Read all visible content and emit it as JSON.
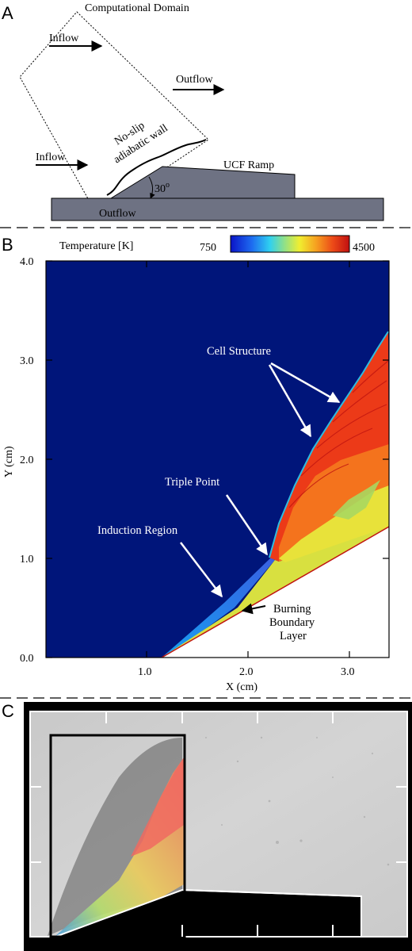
{
  "panel_a": {
    "letter": "A",
    "title": "Computational Domain",
    "inflow_top": "Inflow",
    "inflow_bottom": "Inflow",
    "outflow_right": "Outflow",
    "outflow_bottom": "Outflow",
    "wall_line1": "No-slip",
    "wall_line2": "adiabatic wall",
    "ramp": "UCF Ramp",
    "angle": "30",
    "angle_sup": "o"
  },
  "panel_b": {
    "letter": "B",
    "colorbar_title": "Temperature [K]",
    "colorbar_min": "750",
    "colorbar_max": "4500",
    "ylabel": "Y (cm)",
    "xlabel": "X (cm)",
    "yticks": [
      "0.0",
      "1.0",
      "2.0",
      "3.0",
      "4.0"
    ],
    "xticks": [
      "1.0",
      "2.0",
      "3.0"
    ],
    "ann_cell": "Cell Structure",
    "ann_triple": "Triple Point",
    "ann_induction": "Induction Region",
    "ann_burning_1": "Burning",
    "ann_burning_2": "Boundary",
    "ann_burning_3": "Layer"
  },
  "panel_c": {
    "letter": "C"
  },
  "colors": {
    "background_field": "#00157a",
    "ramp_gray": "#6e7283",
    "hot_red": "#e8351a",
    "orange": "#f47b1c",
    "yellow": "#e8e23a",
    "cyan": "#2dbbe0"
  }
}
